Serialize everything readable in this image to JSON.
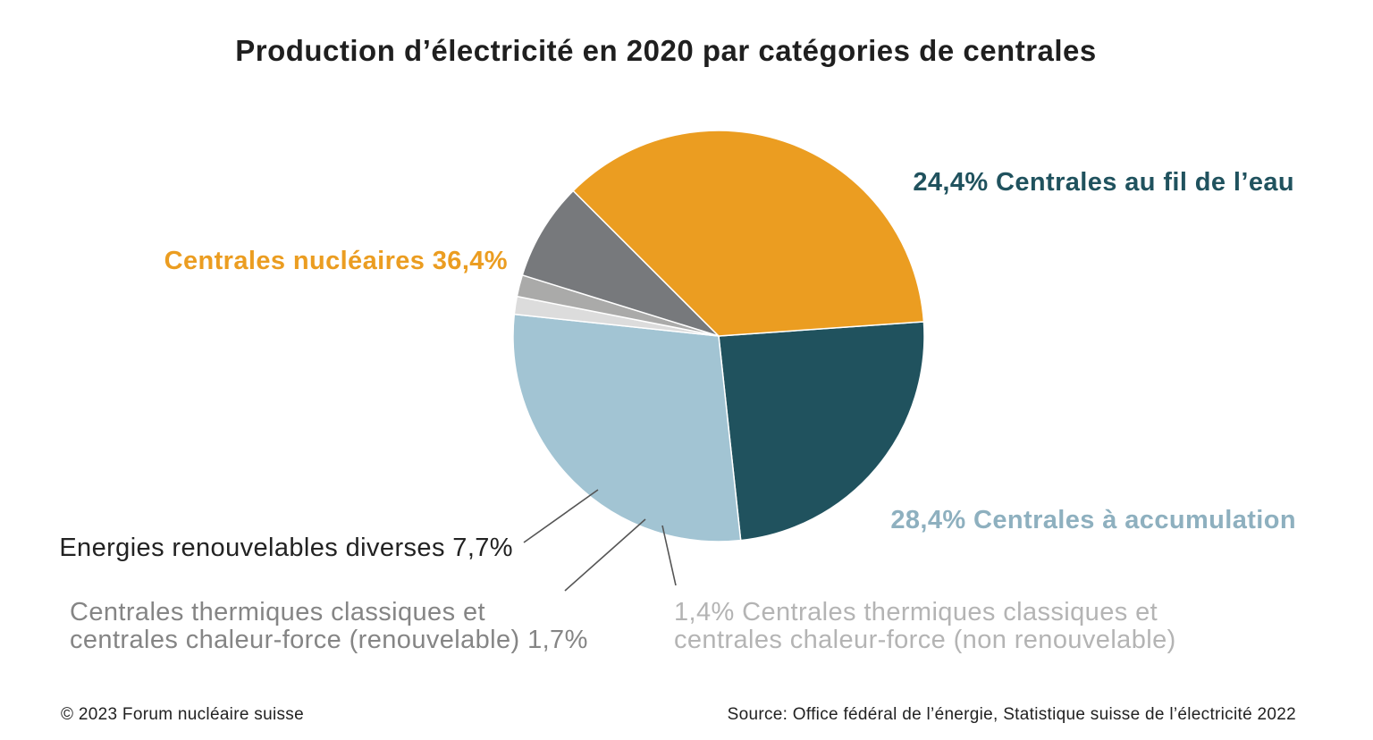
{
  "chart_data": {
    "type": "pie",
    "title": "Production d’électricité en 2020 par catégories de centrales",
    "slices": [
      {
        "name": "Centrales au fil de l’eau",
        "value": 24.4,
        "color": "#20525e",
        "label_lines": [
          "24,4% Centrales au fil de l’eau"
        ]
      },
      {
        "name": "Centrales à accumulation",
        "value": 28.4,
        "color": "#a2c4d3",
        "label_lines": [
          "28,4% Centrales à accumulation"
        ]
      },
      {
        "name": "Centrales thermiques classiques et centrales chaleur-force (non renouvelable)",
        "value": 1.4,
        "color": "#dcdcdc",
        "label_lines": [
          "1,4% Centrales thermiques classiques et",
          "centrales chaleur-force (non renouvelable)"
        ]
      },
      {
        "name": "Centrales thermiques classiques et centrales chaleur-force (renouvelable)",
        "value": 1.7,
        "color": "#aaaaa9",
        "label_lines": [
          "Centrales thermiques classiques et",
          "centrales chaleur-force (renouvelable) 1,7%"
        ]
      },
      {
        "name": "Energies renouvelables diverses",
        "value": 7.7,
        "color": "#77797c",
        "label_lines": [
          "Energies renouvelables diverses 7,7%"
        ]
      },
      {
        "name": "Centrales nucléaires",
        "value": 36.4,
        "color": "#eb9d21",
        "label_lines": [
          "Centrales nucléaires 36,4%"
        ]
      }
    ],
    "label_colors": [
      "#20525e",
      "#8eb0bf",
      "#b4b4b4",
      "#858585",
      "#222222",
      "#eb9d21"
    ]
  },
  "footer": {
    "copyright": "© 2023 Forum nucléaire suisse",
    "source": "Source: Office fédéral de l’énergie, Statistique suisse de l’électricité 2022"
  }
}
